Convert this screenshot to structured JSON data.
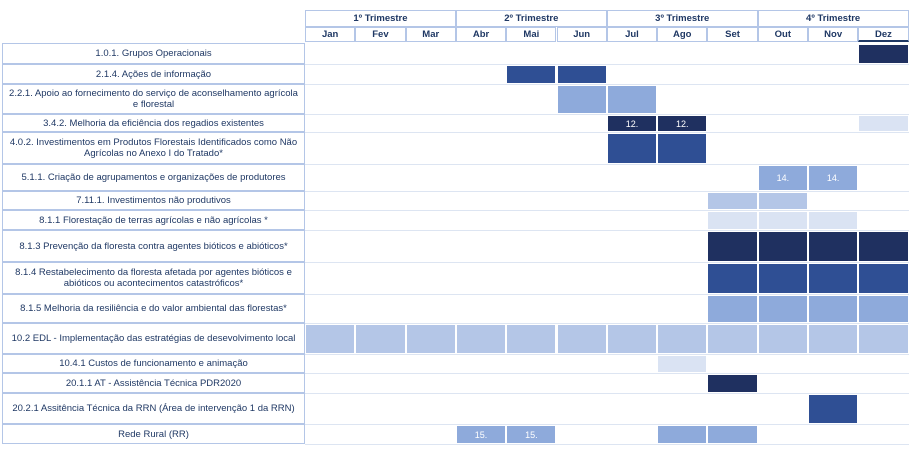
{
  "colors": {
    "very_dark": "#1f3060",
    "dark": "#2f4f94",
    "medium": "#8eaadb",
    "light": "#b4c6e7",
    "very_light": "#dae3f3",
    "text": "#1f3864",
    "border": "#b4c6e7"
  },
  "quarters": [
    "1º Trimestre",
    "2º Trimestre",
    "3º Trimestre",
    "4º Trimestre"
  ],
  "months": [
    "Jan",
    "Fev",
    "Mar",
    "Abr",
    "Mai",
    "Jun",
    "Jul",
    "Ago",
    "Set",
    "Out",
    "Nov",
    "Dez"
  ],
  "rows": [
    {
      "label": "1.0.1. Grupos Operacionais",
      "cells": [
        {
          "m": 11,
          "shade": "very_dark",
          "text": ""
        }
      ]
    },
    {
      "label": "2.1.4. Ações de informação",
      "cells": [
        {
          "m": 4,
          "shade": "dark",
          "text": ""
        },
        {
          "m": 5,
          "shade": "dark",
          "text": ""
        }
      ]
    },
    {
      "label": "2.2.1. Apoio ao fornecimento do serviço de aconselhamento agrícola e florestal",
      "cells": [
        {
          "m": 5,
          "shade": "medium",
          "text": ""
        },
        {
          "m": 6,
          "shade": "medium",
          "text": ""
        }
      ]
    },
    {
      "label": "3.4.2. Melhoria da eficiência dos regadios existentes",
      "cells": [
        {
          "m": 6,
          "shade": "very_dark",
          "text": "12."
        },
        {
          "m": 7,
          "shade": "very_dark",
          "text": "12."
        },
        {
          "m": 11,
          "shade": "very_light",
          "text": ""
        }
      ]
    },
    {
      "label": "4.0.2. Investimentos em Produtos Florestais Identificados como Não Agrícolas no Anexo I do Tratado*",
      "cells": [
        {
          "m": 6,
          "shade": "dark",
          "text": ""
        },
        {
          "m": 7,
          "shade": "dark",
          "text": ""
        }
      ]
    },
    {
      "label": "5.1.1. Criação de agrupamentos e organizações de produtores",
      "cells": [
        {
          "m": 9,
          "shade": "medium",
          "text": "14."
        },
        {
          "m": 10,
          "shade": "medium",
          "text": "14."
        }
      ]
    },
    {
      "label": "7.11.1. Investimentos não produtivos",
      "cells": [
        {
          "m": 8,
          "shade": "light",
          "text": ""
        },
        {
          "m": 9,
          "shade": "light",
          "text": ""
        }
      ]
    },
    {
      "label": "8.1.1 Florestação de terras agrícolas e não agrícolas *",
      "cells": [
        {
          "m": 8,
          "shade": "very_light",
          "text": ""
        },
        {
          "m": 9,
          "shade": "very_light",
          "text": ""
        },
        {
          "m": 10,
          "shade": "very_light",
          "text": ""
        }
      ]
    },
    {
      "label": "8.1.3 Prevenção da floresta contra agentes bióticos e abióticos*",
      "cells": [
        {
          "m": 8,
          "shade": "very_dark",
          "text": ""
        },
        {
          "m": 9,
          "shade": "very_dark",
          "text": ""
        },
        {
          "m": 10,
          "shade": "very_dark",
          "text": ""
        },
        {
          "m": 11,
          "shade": "very_dark",
          "text": ""
        }
      ]
    },
    {
      "label": "8.1.4 Restabelecimento da floresta afetada por agentes bióticos e abióticos ou acontecimentos catastróficos*",
      "cells": [
        {
          "m": 8,
          "shade": "dark",
          "text": ""
        },
        {
          "m": 9,
          "shade": "dark",
          "text": ""
        },
        {
          "m": 10,
          "shade": "dark",
          "text": ""
        },
        {
          "m": 11,
          "shade": "dark",
          "text": ""
        }
      ]
    },
    {
      "label": "8.1.5 Melhoria da resiliência e do valor ambiental das florestas*",
      "cells": [
        {
          "m": 8,
          "shade": "medium",
          "text": ""
        },
        {
          "m": 9,
          "shade": "medium",
          "text": ""
        },
        {
          "m": 10,
          "shade": "medium",
          "text": ""
        },
        {
          "m": 11,
          "shade": "medium",
          "text": ""
        }
      ]
    },
    {
      "label": "10.2 EDL - Implementação das estratégias de desevolvimento local",
      "cells": [
        {
          "m": 0,
          "shade": "light",
          "text": ""
        },
        {
          "m": 1,
          "shade": "light",
          "text": ""
        },
        {
          "m": 2,
          "shade": "light",
          "text": ""
        },
        {
          "m": 3,
          "shade": "light",
          "text": ""
        },
        {
          "m": 4,
          "shade": "light",
          "text": ""
        },
        {
          "m": 5,
          "shade": "light",
          "text": ""
        },
        {
          "m": 6,
          "shade": "light",
          "text": ""
        },
        {
          "m": 7,
          "shade": "light",
          "text": ""
        },
        {
          "m": 8,
          "shade": "light",
          "text": ""
        },
        {
          "m": 9,
          "shade": "light",
          "text": ""
        },
        {
          "m": 10,
          "shade": "light",
          "text": ""
        },
        {
          "m": 11,
          "shade": "light",
          "text": ""
        }
      ]
    },
    {
      "label": "10.4.1 Custos de funcionamento e animação",
      "cells": [
        {
          "m": 7,
          "shade": "very_light",
          "text": ""
        }
      ]
    },
    {
      "label": "20.1.1 AT - Assistência Técnica PDR2020",
      "cells": [
        {
          "m": 8,
          "shade": "very_dark",
          "text": ""
        }
      ]
    },
    {
      "label": "20.2.1 Assitência Técnica da RRN (Área de intervenção 1 da RRN)",
      "cells": [
        {
          "m": 10,
          "shade": "dark",
          "text": ""
        }
      ]
    },
    {
      "label": "Rede Rural (RR)",
      "cells": [
        {
          "m": 3,
          "shade": "medium",
          "text": "15."
        },
        {
          "m": 4,
          "shade": "medium",
          "text": "15."
        },
        {
          "m": 7,
          "shade": "medium",
          "text": ""
        },
        {
          "m": 8,
          "shade": "medium",
          "text": ""
        }
      ]
    }
  ]
}
